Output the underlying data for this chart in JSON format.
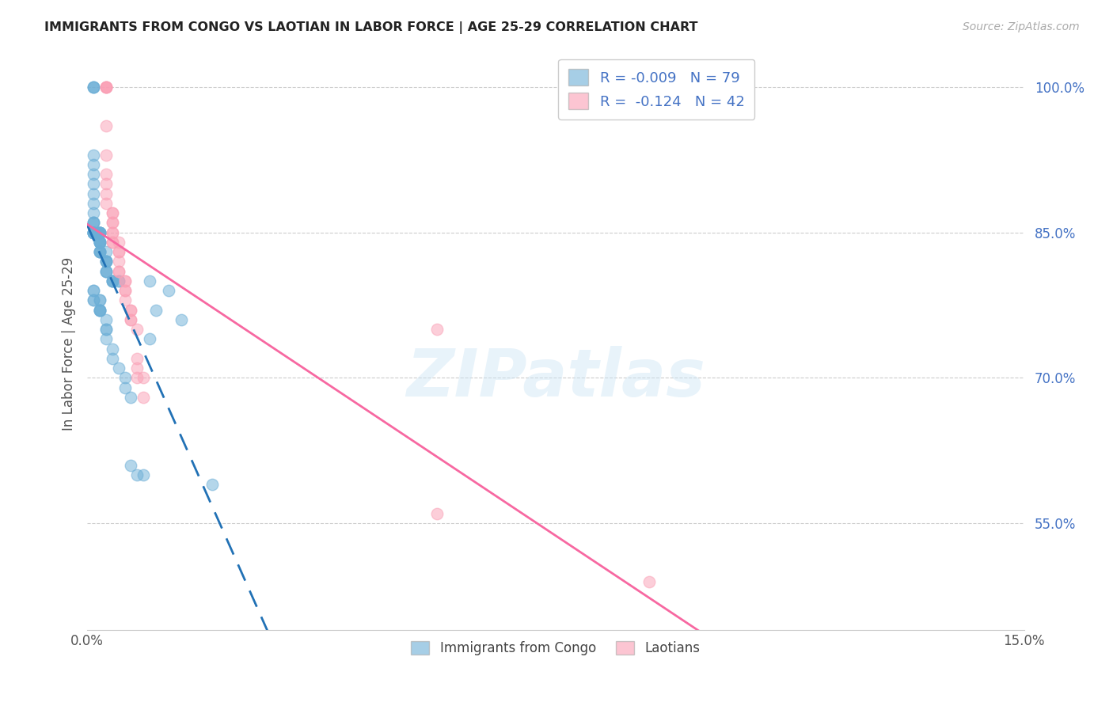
{
  "title": "IMMIGRANTS FROM CONGO VS LAOTIAN IN LABOR FORCE | AGE 25-29 CORRELATION CHART",
  "source": "Source: ZipAtlas.com",
  "ylabel": "In Labor Force | Age 25-29",
  "yticks": [
    55.0,
    70.0,
    85.0,
    100.0
  ],
  "xlim": [
    0.0,
    0.15
  ],
  "ylim": [
    0.44,
    1.03
  ],
  "congo_R": "-0.009",
  "congo_N": "79",
  "laotian_R": "-0.124",
  "laotian_N": "42",
  "congo_color": "#6baed6",
  "laotian_color": "#fa9fb5",
  "congo_line_color": "#2171b5",
  "laotian_line_color": "#f768a1",
  "background_color": "#ffffff",
  "watermark": "ZIPatlas",
  "congo_x": [
    0.001,
    0.001,
    0.001,
    0.001,
    0.001,
    0.001,
    0.001,
    0.001,
    0.001,
    0.001,
    0.001,
    0.001,
    0.001,
    0.001,
    0.001,
    0.001,
    0.001,
    0.001,
    0.001,
    0.001,
    0.002,
    0.002,
    0.002,
    0.002,
    0.002,
    0.002,
    0.002,
    0.002,
    0.002,
    0.002,
    0.002,
    0.002,
    0.002,
    0.002,
    0.002,
    0.002,
    0.003,
    0.003,
    0.003,
    0.003,
    0.003,
    0.003,
    0.003,
    0.003,
    0.004,
    0.004,
    0.004,
    0.004,
    0.005,
    0.005,
    0.001,
    0.001,
    0.001,
    0.001,
    0.002,
    0.002,
    0.002,
    0.002,
    0.002,
    0.002,
    0.003,
    0.003,
    0.003,
    0.003,
    0.004,
    0.004,
    0.005,
    0.006,
    0.006,
    0.007,
    0.007,
    0.008,
    0.009,
    0.01,
    0.01,
    0.011,
    0.013,
    0.015,
    0.02
  ],
  "congo_y": [
    1.0,
    1.0,
    1.0,
    0.93,
    0.92,
    0.91,
    0.9,
    0.89,
    0.88,
    0.87,
    0.86,
    0.86,
    0.86,
    0.85,
    0.85,
    0.85,
    0.85,
    0.85,
    0.85,
    0.85,
    0.85,
    0.85,
    0.85,
    0.85,
    0.85,
    0.85,
    0.85,
    0.84,
    0.84,
    0.84,
    0.84,
    0.84,
    0.83,
    0.83,
    0.83,
    0.83,
    0.83,
    0.82,
    0.82,
    0.82,
    0.82,
    0.81,
    0.81,
    0.81,
    0.8,
    0.8,
    0.8,
    0.8,
    0.8,
    0.8,
    0.79,
    0.79,
    0.78,
    0.78,
    0.78,
    0.78,
    0.77,
    0.77,
    0.77,
    0.77,
    0.76,
    0.75,
    0.75,
    0.74,
    0.73,
    0.72,
    0.71,
    0.7,
    0.69,
    0.68,
    0.61,
    0.6,
    0.6,
    0.74,
    0.8,
    0.77,
    0.79,
    0.76,
    0.59
  ],
  "laotian_x": [
    0.003,
    0.003,
    0.003,
    0.003,
    0.003,
    0.003,
    0.003,
    0.003,
    0.003,
    0.003,
    0.004,
    0.004,
    0.004,
    0.004,
    0.004,
    0.004,
    0.004,
    0.004,
    0.005,
    0.005,
    0.005,
    0.005,
    0.005,
    0.005,
    0.006,
    0.006,
    0.006,
    0.006,
    0.006,
    0.007,
    0.007,
    0.007,
    0.007,
    0.008,
    0.008,
    0.008,
    0.008,
    0.009,
    0.009,
    0.056,
    0.056,
    0.09
  ],
  "laotian_y": [
    1.0,
    1.0,
    1.0,
    1.0,
    0.96,
    0.93,
    0.91,
    0.9,
    0.89,
    0.88,
    0.87,
    0.87,
    0.86,
    0.86,
    0.85,
    0.85,
    0.84,
    0.84,
    0.84,
    0.83,
    0.83,
    0.82,
    0.81,
    0.81,
    0.8,
    0.8,
    0.79,
    0.79,
    0.78,
    0.77,
    0.77,
    0.76,
    0.76,
    0.75,
    0.72,
    0.71,
    0.7,
    0.7,
    0.68,
    0.75,
    0.56,
    0.49
  ],
  "grid_color": "#cccccc",
  "tick_color_right": "#4472c4",
  "legend_R_color": "#4472c4"
}
